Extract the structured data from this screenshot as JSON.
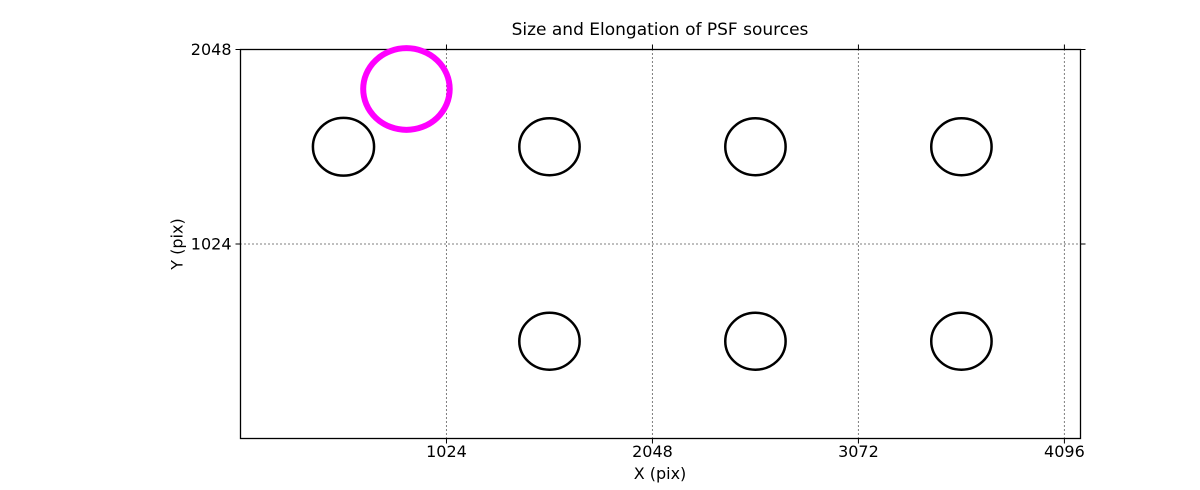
{
  "figure": {
    "background": "#ffffff"
  },
  "chart_data": {
    "type": "scatter",
    "title": "Size and Elongation of PSF sources",
    "xlabel": "X (pix)",
    "ylabel": "Y (pix)",
    "xlim": [
      0,
      4176
    ],
    "ylim": [
      0,
      2048
    ],
    "xticks": [
      1024,
      2048,
      3072,
      4096
    ],
    "yticks": [
      1024,
      2048
    ],
    "grid": {
      "visible": true,
      "style": "dotted",
      "color": "#000000"
    },
    "axis_color": "#000000",
    "highlight_color": "#ff00ff",
    "source_color": "#000000",
    "legend": null,
    "sources": [
      {
        "x": 825,
        "y": 1840,
        "r": 215,
        "color": "#ff00ff",
        "line_width": 6,
        "highlighted": true
      },
      {
        "x": 512,
        "y": 1536,
        "r": 152,
        "color": "#000000",
        "line_width": 2.5,
        "highlighted": false
      },
      {
        "x": 1536,
        "y": 1536,
        "r": 150,
        "color": "#000000",
        "line_width": 2.5,
        "highlighted": false
      },
      {
        "x": 2560,
        "y": 1536,
        "r": 150,
        "color": "#000000",
        "line_width": 2.5,
        "highlighted": false
      },
      {
        "x": 3584,
        "y": 1536,
        "r": 150,
        "color": "#000000",
        "line_width": 2.5,
        "highlighted": false
      },
      {
        "x": 1536,
        "y": 512,
        "r": 150,
        "color": "#000000",
        "line_width": 2.5,
        "highlighted": false
      },
      {
        "x": 2560,
        "y": 512,
        "r": 150,
        "color": "#000000",
        "line_width": 2.5,
        "highlighted": false
      },
      {
        "x": 3584,
        "y": 512,
        "r": 150,
        "color": "#000000",
        "line_width": 2.5,
        "highlighted": false
      }
    ]
  }
}
